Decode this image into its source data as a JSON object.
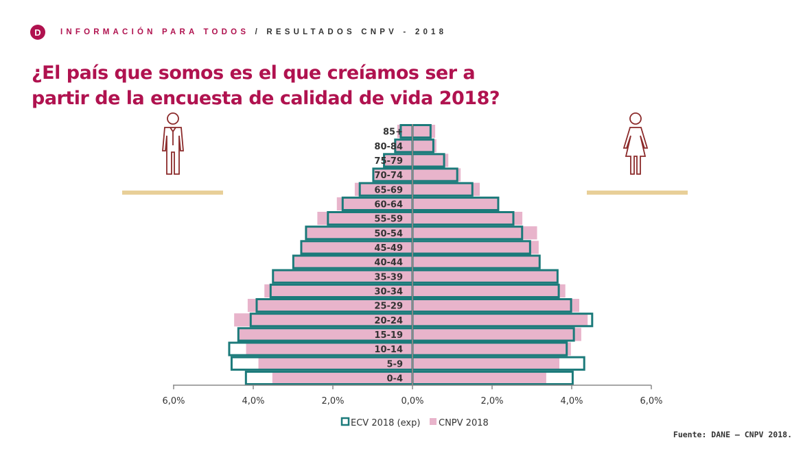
{
  "header": {
    "logo_letter": "D",
    "breadcrumb_primary": "INFORMACIÓN PARA TODOS",
    "separator": " / ",
    "breadcrumb_secondary": "RESULTADOS CNPV - 2018"
  },
  "title": "¿El país que somos es el que creíamos ser a partir de la encuesta de calidad de vida 2018?",
  "source": "Fuente: DANE – CNPV 2018.",
  "colors": {
    "accent": "#b0124f",
    "ecv": "#1b7a7a",
    "cnpv": "#e8b4cb",
    "gold": "#e8cf98"
  },
  "icons": {
    "left": "man-icon",
    "right": "woman-icon"
  },
  "chart_data": {
    "type": "bar",
    "subtype": "population-pyramid",
    "categories": [
      "85+",
      "80-84",
      "75-79",
      "70-74",
      "65-69",
      "60-64",
      "55-59",
      "50-54",
      "45-49",
      "40-44",
      "35-39",
      "30-34",
      "25-29",
      "20-24",
      "15-19",
      "10-14",
      "5-9",
      "0-4"
    ],
    "xlim": [
      -6,
      6
    ],
    "xticks": [
      "6,0%",
      "4,0%",
      "2,0%",
      "0,0%",
      "2,0%",
      "4,0%",
      "6,0%"
    ],
    "xtick_values": [
      -6,
      -4,
      -2,
      0,
      2,
      4,
      6
    ],
    "legend": [
      "ECV 2018 (exp)",
      "CNPV 2018"
    ],
    "legend_position": "bottom",
    "series": [
      {
        "name": "ECV 2018 (exp)",
        "side": "men",
        "values": [
          0.32,
          0.46,
          0.74,
          1.01,
          1.35,
          1.78,
          2.15,
          2.7,
          2.82,
          3.02,
          3.53,
          3.59,
          3.94,
          4.09,
          4.4,
          4.63,
          4.57,
          4.21
        ]
      },
      {
        "name": "ECV 2018 (exp)",
        "side": "women",
        "values": [
          0.48,
          0.55,
          0.82,
          1.15,
          1.53,
          2.18,
          2.56,
          2.78,
          2.98,
          3.22,
          3.67,
          3.7,
          4.01,
          4.54,
          4.08,
          3.9,
          4.34,
          4.05
        ]
      },
      {
        "name": "CNPV 2018",
        "side": "men",
        "values": [
          0.38,
          0.46,
          0.74,
          1.01,
          1.45,
          1.9,
          2.39,
          2.7,
          2.8,
          2.97,
          3.49,
          3.72,
          4.14,
          4.48,
          4.37,
          4.18,
          3.87,
          3.52
        ]
      },
      {
        "name": "CNPV 2018",
        "side": "women",
        "values": [
          0.57,
          0.6,
          0.9,
          1.21,
          1.69,
          2.18,
          2.76,
          3.13,
          3.17,
          3.21,
          3.63,
          3.84,
          4.19,
          4.4,
          4.24,
          3.98,
          3.69,
          3.36
        ]
      }
    ]
  }
}
